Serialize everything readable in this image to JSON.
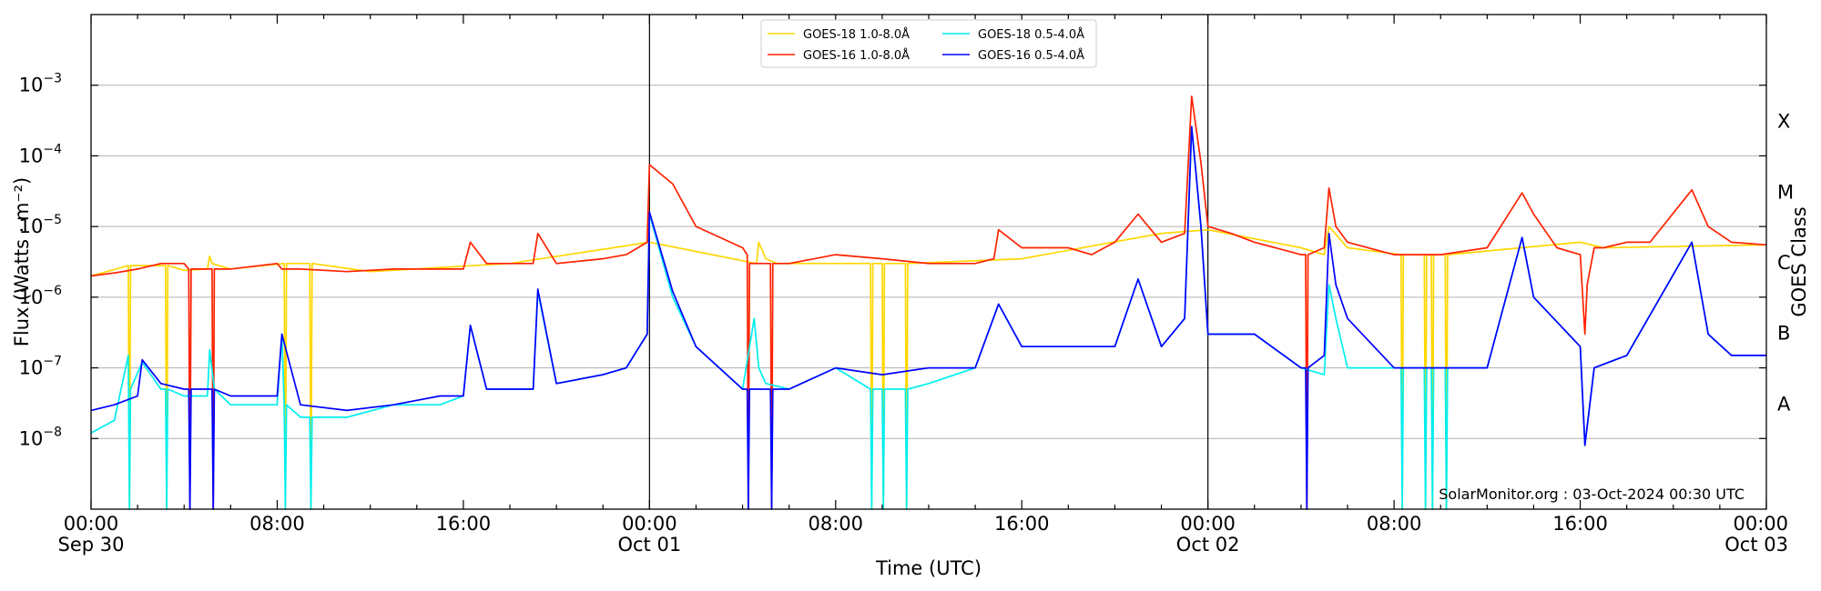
{
  "chart_data": {
    "type": "line",
    "xlabel": "Time (UTC)",
    "ylabel": "Flux (Watts · m⁻²)",
    "ylabel_right": "GOES Class",
    "y_scale": "log",
    "ylim": [
      1e-09,
      0.01
    ],
    "xlim_hours": [
      0,
      72
    ],
    "grid": "horizontal",
    "legend_placement": "top-center",
    "credit": "SolarMonitor.org : 03-Oct-2024 00:30 UTC",
    "x_ticks": [
      {
        "hour": 0,
        "line1": "00:00",
        "line2": "Sep 30"
      },
      {
        "hour": 8,
        "line1": "08:00",
        "line2": ""
      },
      {
        "hour": 16,
        "line1": "16:00",
        "line2": ""
      },
      {
        "hour": 24,
        "line1": "00:00",
        "line2": "Oct 01"
      },
      {
        "hour": 32,
        "line1": "08:00",
        "line2": ""
      },
      {
        "hour": 40,
        "line1": "16:00",
        "line2": ""
      },
      {
        "hour": 48,
        "line1": "00:00",
        "line2": "Oct 02"
      },
      {
        "hour": 56,
        "line1": "08:00",
        "line2": ""
      },
      {
        "hour": 64,
        "line1": "16:00",
        "line2": ""
      },
      {
        "hour": 72,
        "line1": "00:00",
        "line2": "Oct 03"
      }
    ],
    "y_ticks": [
      {
        "exp": -8,
        "label": "10",
        "sup": "−8"
      },
      {
        "exp": -7,
        "label": "10",
        "sup": "−7"
      },
      {
        "exp": -6,
        "label": "10",
        "sup": "−6"
      },
      {
        "exp": -5,
        "label": "10",
        "sup": "−5"
      },
      {
        "exp": -4,
        "label": "10",
        "sup": "−4"
      },
      {
        "exp": -3,
        "label": "10",
        "sup": "−3"
      }
    ],
    "class_labels": [
      {
        "label": "A",
        "exp": -7.5
      },
      {
        "label": "B",
        "exp": -6.5
      },
      {
        "label": "C",
        "exp": -5.5
      },
      {
        "label": "M",
        "exp": -4.5
      },
      {
        "label": "X",
        "exp": -3.5
      }
    ],
    "day_lines_hours": [
      24,
      48
    ],
    "series": [
      {
        "name": "GOES-18 1.0-8.0Å",
        "color": "#ffd700",
        "x_hours": [
          0,
          1.6,
          1.65,
          1.7,
          3.2,
          3.25,
          3.3,
          4,
          5,
          5.1,
          5.2,
          6,
          8.3,
          8.35,
          8.4,
          9.4,
          9.45,
          9.5,
          12,
          18,
          24,
          28.6,
          28.7,
          29,
          29.5,
          30,
          33.5,
          33.55,
          33.6,
          34,
          34.05,
          34.1,
          35,
          35.05,
          35.1,
          40,
          46,
          48,
          52,
          53,
          53.2,
          54,
          56.3,
          56.35,
          56.4,
          57.3,
          57.35,
          57.4,
          57.6,
          57.65,
          57.7,
          58.2,
          58.25,
          58.3,
          64,
          65,
          72
        ],
        "y": [
          2e-06,
          2.8e-06,
          1e-09,
          2.8e-06,
          2.8e-06,
          1e-09,
          2.8e-06,
          2.4e-06,
          2.5e-06,
          3.8e-06,
          3e-06,
          2.5e-06,
          3e-06,
          1e-09,
          3e-06,
          3e-06,
          1e-09,
          3e-06,
          2.3e-06,
          3e-06,
          6e-06,
          3e-06,
          6e-06,
          3.5e-06,
          3e-06,
          3e-06,
          3e-06,
          1e-09,
          3e-06,
          3e-06,
          1e-09,
          3e-06,
          3e-06,
          1e-09,
          3e-06,
          3.5e-06,
          8e-06,
          9e-06,
          5e-06,
          4e-06,
          1e-05,
          5e-06,
          4e-06,
          1e-09,
          4e-06,
          4e-06,
          1e-09,
          4e-06,
          4e-06,
          1e-09,
          4e-06,
          4e-06,
          1e-09,
          4e-06,
          6e-06,
          5e-06,
          5.5e-06
        ]
      },
      {
        "name": "GOES-16 1.0-8.0Å",
        "color": "#ff2200",
        "x_hours": [
          0,
          1,
          2,
          3,
          4,
          4.2,
          4.25,
          4.3,
          5,
          5.2,
          5.25,
          5.3,
          6,
          8,
          8.2,
          9,
          11,
          13,
          16,
          16.3,
          17,
          19,
          19.2,
          20,
          22,
          23,
          23.9,
          24,
          25,
          26,
          28,
          28.2,
          28.25,
          28.3,
          29.2,
          29.25,
          29.3,
          30,
          32,
          34,
          36,
          38,
          38.8,
          39,
          40,
          41,
          42,
          43,
          44,
          45,
          46,
          47,
          47.3,
          47.7,
          48,
          49,
          50,
          52,
          52.2,
          52.25,
          52.3,
          53,
          53.2,
          53.5,
          54,
          56,
          58,
          60,
          61.5,
          62,
          63,
          64,
          64.2,
          64.3,
          64.6,
          65,
          66,
          67,
          68.8,
          69.5,
          70.5,
          72
        ],
        "y": [
          2e-06,
          2.2e-06,
          2.5e-06,
          3e-06,
          3e-06,
          2.5e-06,
          1e-09,
          2.5e-06,
          2.5e-06,
          2.5e-06,
          1e-09,
          2.5e-06,
          2.5e-06,
          3e-06,
          2.5e-06,
          2.5e-06,
          2.3e-06,
          2.5e-06,
          2.5e-06,
          6e-06,
          3e-06,
          3e-06,
          8e-06,
          3e-06,
          3.5e-06,
          4e-06,
          6e-06,
          7.5e-05,
          4e-05,
          1e-05,
          5e-06,
          4e-06,
          1e-09,
          3e-06,
          3e-06,
          1e-09,
          3e-06,
          3e-06,
          4e-06,
          3.5e-06,
          3e-06,
          3e-06,
          3.5e-06,
          9e-06,
          5e-06,
          5e-06,
          5e-06,
          4e-06,
          6e-06,
          1.5e-05,
          6e-06,
          8e-06,
          0.0007,
          8e-05,
          1e-05,
          8e-06,
          6e-06,
          4e-06,
          4e-06,
          1e-09,
          4e-06,
          5e-06,
          3.5e-05,
          1e-05,
          6e-06,
          4e-06,
          4e-06,
          5e-06,
          3e-05,
          1.5e-05,
          5e-06,
          4e-06,
          3e-07,
          1.5e-06,
          5e-06,
          5e-06,
          6e-06,
          6e-06,
          3.3e-05,
          1e-05,
          6e-06,
          5.5e-06
        ]
      },
      {
        "name": "GOES-18 0.5-4.0Å",
        "color": "#00eeee",
        "x_hours": [
          0,
          1,
          1.6,
          1.65,
          1.7,
          2.2,
          3,
          3.2,
          3.25,
          3.3,
          4,
          5,
          5.1,
          5.3,
          6,
          8,
          8.2,
          8.3,
          8.35,
          8.4,
          9,
          9.4,
          9.45,
          9.5,
          11,
          13,
          15,
          16,
          16.3,
          17,
          19,
          19.2,
          20,
          22,
          23,
          23.9,
          24,
          25,
          26,
          28,
          28.5,
          28.7,
          29,
          30,
          32,
          33.5,
          33.55,
          33.6,
          34,
          34.05,
          34.1,
          35,
          35.05,
          35.1,
          36,
          38,
          39,
          40,
          42,
          44,
          45,
          46,
          47,
          47.3,
          47.7,
          48,
          50,
          52,
          53,
          53.2,
          53.5,
          54,
          56,
          56.3,
          56.35,
          56.4,
          57.3,
          57.35,
          57.4,
          57.6,
          57.65,
          57.7,
          58.2,
          58.25,
          58.3,
          60,
          61.5,
          62,
          64,
          64.2,
          64.6,
          66,
          68.8,
          69.5,
          70.5,
          72
        ],
        "y": [
          1.2e-08,
          1.8e-08,
          1.5e-07,
          1e-09,
          5e-08,
          1.2e-07,
          5e-08,
          5e-08,
          1e-09,
          5e-08,
          4e-08,
          4e-08,
          1.8e-07,
          5e-08,
          3e-08,
          3e-08,
          3e-07,
          3e-08,
          1e-09,
          3e-08,
          2e-08,
          2e-08,
          1e-09,
          2e-08,
          2e-08,
          3e-08,
          3e-08,
          4e-08,
          4e-07,
          5e-08,
          5e-08,
          1.2e-06,
          6e-08,
          8e-08,
          1e-07,
          3e-07,
          1.5e-05,
          1e-06,
          2e-07,
          5e-08,
          5e-07,
          1e-07,
          6e-08,
          5e-08,
          1e-07,
          5e-08,
          1e-09,
          5e-08,
          5e-08,
          1e-09,
          5e-08,
          5e-08,
          1e-09,
          5e-08,
          6e-08,
          1e-07,
          8e-07,
          2e-07,
          2e-07,
          2e-07,
          1.8e-06,
          2e-07,
          5e-07,
          0.00025,
          1e-05,
          3e-07,
          3e-07,
          1e-07,
          8e-08,
          1.5e-06,
          5e-07,
          1e-07,
          1e-07,
          1e-07,
          1e-09,
          1e-07,
          1e-07,
          1e-09,
          1e-07,
          1e-07,
          1e-09,
          1e-07,
          1e-07,
          1e-09,
          1e-07,
          1e-07,
          7e-06,
          1e-06,
          2e-07,
          8e-09,
          1e-07,
          1.5e-07,
          6e-06,
          3e-07,
          1.5e-07,
          1.5e-07
        ]
      },
      {
        "name": "GOES-16 0.5-4.0Å",
        "color": "#0000ff",
        "x_hours": [
          0,
          1,
          2,
          2.2,
          3,
          4,
          4.2,
          4.25,
          4.3,
          5,
          5.2,
          5.25,
          5.3,
          6,
          8,
          8.2,
          9,
          11,
          13,
          15,
          16,
          16.3,
          17,
          19,
          19.2,
          20,
          22,
          23,
          23.9,
          24,
          25,
          26,
          28,
          28.2,
          28.25,
          28.3,
          29.2,
          29.25,
          29.3,
          30,
          32,
          34,
          36,
          38,
          39,
          40,
          42,
          44,
          45,
          46,
          47,
          47.3,
          47.7,
          48,
          50,
          52,
          52.2,
          52.25,
          52.3,
          53,
          53.2,
          53.5,
          54,
          56,
          58,
          60,
          61.5,
          62,
          64,
          64.2,
          64.6,
          66,
          68.8,
          69.5,
          70.5,
          72
        ],
        "y": [
          2.5e-08,
          3e-08,
          4e-08,
          1.3e-07,
          6e-08,
          5e-08,
          5e-08,
          1e-09,
          5e-08,
          5e-08,
          5e-08,
          1e-09,
          5e-08,
          4e-08,
          4e-08,
          3e-07,
          3e-08,
          2.5e-08,
          3e-08,
          4e-08,
          4e-08,
          4e-07,
          5e-08,
          5e-08,
          1.3e-06,
          6e-08,
          8e-08,
          1e-07,
          3e-07,
          1.6e-05,
          1.2e-06,
          2e-07,
          5e-08,
          5e-08,
          1e-09,
          5e-08,
          5e-08,
          1e-09,
          5e-08,
          5e-08,
          1e-07,
          8e-08,
          1e-07,
          1e-07,
          8e-07,
          2e-07,
          2e-07,
          2e-07,
          1.8e-06,
          2e-07,
          5e-07,
          0.00026,
          1e-05,
          3e-07,
          3e-07,
          1e-07,
          1e-07,
          1e-09,
          1e-07,
          1.5e-07,
          8e-06,
          1.5e-06,
          5e-07,
          1e-07,
          1e-07,
          1e-07,
          7e-06,
          1e-06,
          2e-07,
          8e-09,
          1e-07,
          1.5e-07,
          6e-06,
          3e-07,
          1.5e-07,
          1.5e-07
        ]
      }
    ]
  }
}
